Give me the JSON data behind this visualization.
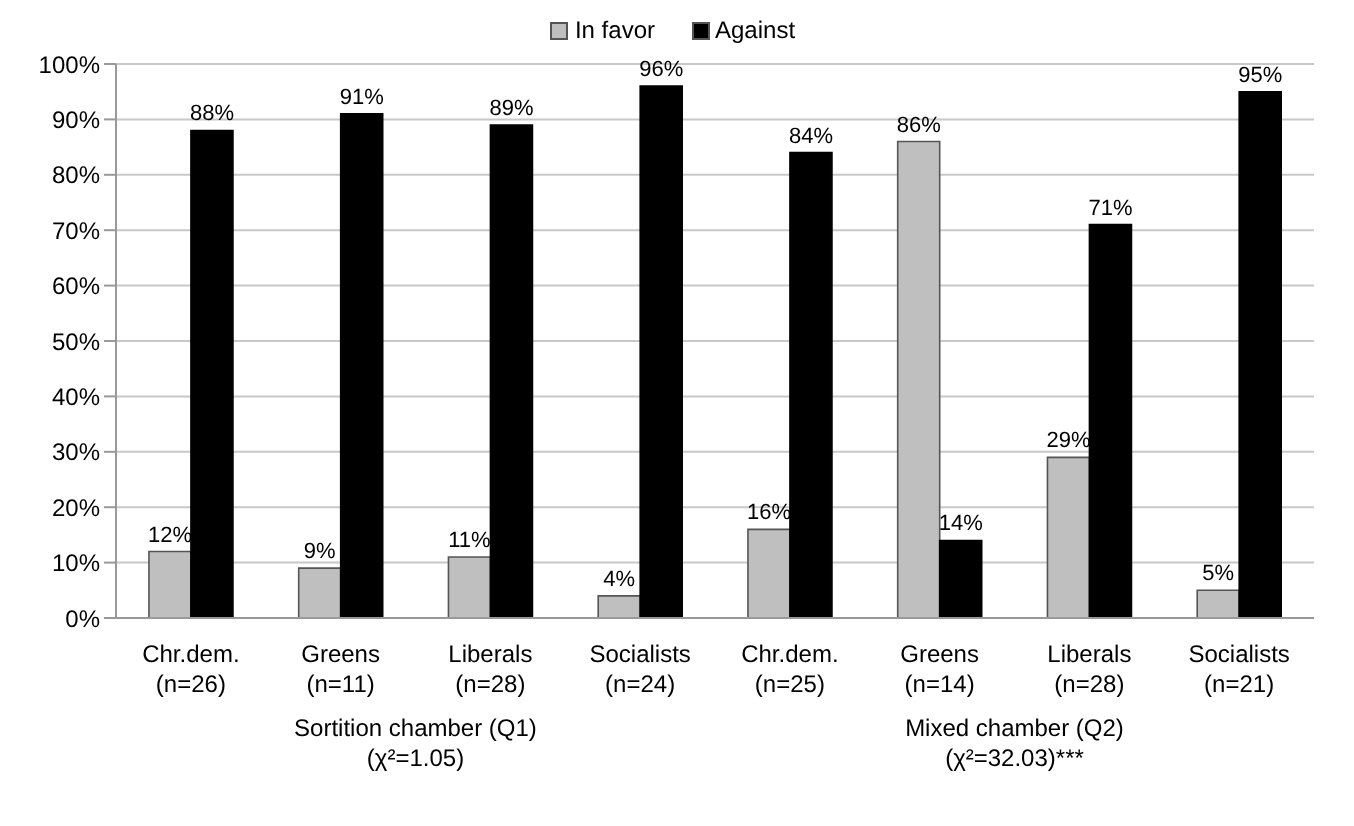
{
  "chart_data": {
    "type": "bar",
    "categories": [
      "Chr.dem.\n(n=26)",
      "Greens\n(n=11)",
      "Liberals\n(n=28)",
      "Socialists\n(n=24)",
      "Chr.dem.\n(n=25)",
      "Greens\n(n=14)",
      "Liberals\n(n=28)",
      "Socialists\n(n=21)"
    ],
    "series": [
      {
        "name": "In favor",
        "color": "#bfbfbf",
        "values": [
          12,
          9,
          11,
          4,
          16,
          86,
          29,
          5
        ],
        "value_labels": [
          "12%",
          "9%",
          "11%",
          "4%",
          "16%",
          "86%",
          "29%",
          "5%"
        ]
      },
      {
        "name": "Against",
        "color": "#000000",
        "values": [
          88,
          91,
          89,
          96,
          84,
          14,
          71,
          95
        ],
        "value_labels": [
          "88%",
          "91%",
          "89%",
          "96%",
          "84%",
          "14%",
          "71%",
          "95%"
        ]
      }
    ],
    "ylim": [
      0,
      100
    ],
    "yticks": [
      {
        "value": 0,
        "label": "0%"
      },
      {
        "value": 10,
        "label": "10%"
      },
      {
        "value": 20,
        "label": "20%"
      },
      {
        "value": 30,
        "label": "30%"
      },
      {
        "value": 40,
        "label": "40%"
      },
      {
        "value": 50,
        "label": "50%"
      },
      {
        "value": 60,
        "label": "60%"
      },
      {
        "value": 70,
        "label": "70%"
      },
      {
        "value": 80,
        "label": "80%"
      },
      {
        "value": 90,
        "label": "90%"
      },
      {
        "value": 100,
        "label": "100%"
      }
    ],
    "annotations": [
      "Sortition chamber (Q1)\n(χ²=1.05)",
      "Mixed chamber (Q2)\n(χ²=32.03)***"
    ],
    "grid": "y",
    "legend": "top"
  }
}
